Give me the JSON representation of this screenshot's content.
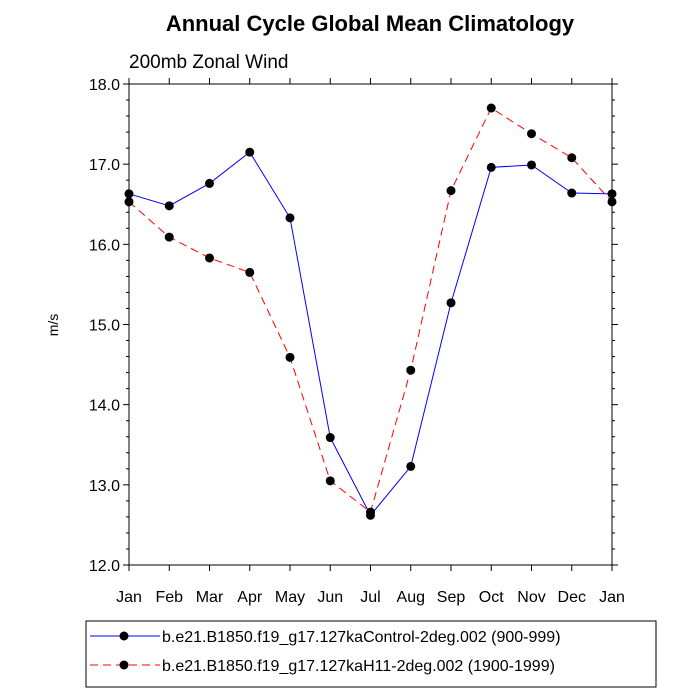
{
  "chart_data": {
    "type": "line",
    "title": "Annual Cycle Global Mean Climatology",
    "subtitle": "200mb Zonal Wind",
    "xlabel": "",
    "ylabel": "m/s",
    "categories": [
      "Jan",
      "Feb",
      "Mar",
      "Apr",
      "May",
      "Jun",
      "Jul",
      "Aug",
      "Sep",
      "Oct",
      "Nov",
      "Dec",
      "Jan"
    ],
    "ylim": [
      12.0,
      18.0
    ],
    "yticks": [
      "12.0",
      "13.0",
      "14.0",
      "15.0",
      "16.0",
      "17.0",
      "18.0"
    ],
    "grid": false,
    "legend_position": "bottom",
    "series": [
      {
        "name": "b.e21.B1850.f19_g17.127kaControl-2deg.002 (900-999)",
        "color": "#0000ff",
        "dash": "solid",
        "marker": "filled-circle",
        "values": [
          16.63,
          16.48,
          16.76,
          17.15,
          16.33,
          13.59,
          12.62,
          13.23,
          15.27,
          16.96,
          16.99,
          16.64,
          16.63
        ]
      },
      {
        "name": "b.e21.B1850.f19_g17.127kaH11-2deg.002 (1900-1999)",
        "color": "#ff0000",
        "dash": "dashed",
        "marker": "filled-circle",
        "values": [
          16.53,
          16.09,
          15.83,
          15.65,
          14.59,
          13.05,
          12.66,
          14.43,
          16.67,
          17.7,
          17.38,
          17.08,
          16.53
        ]
      }
    ]
  }
}
